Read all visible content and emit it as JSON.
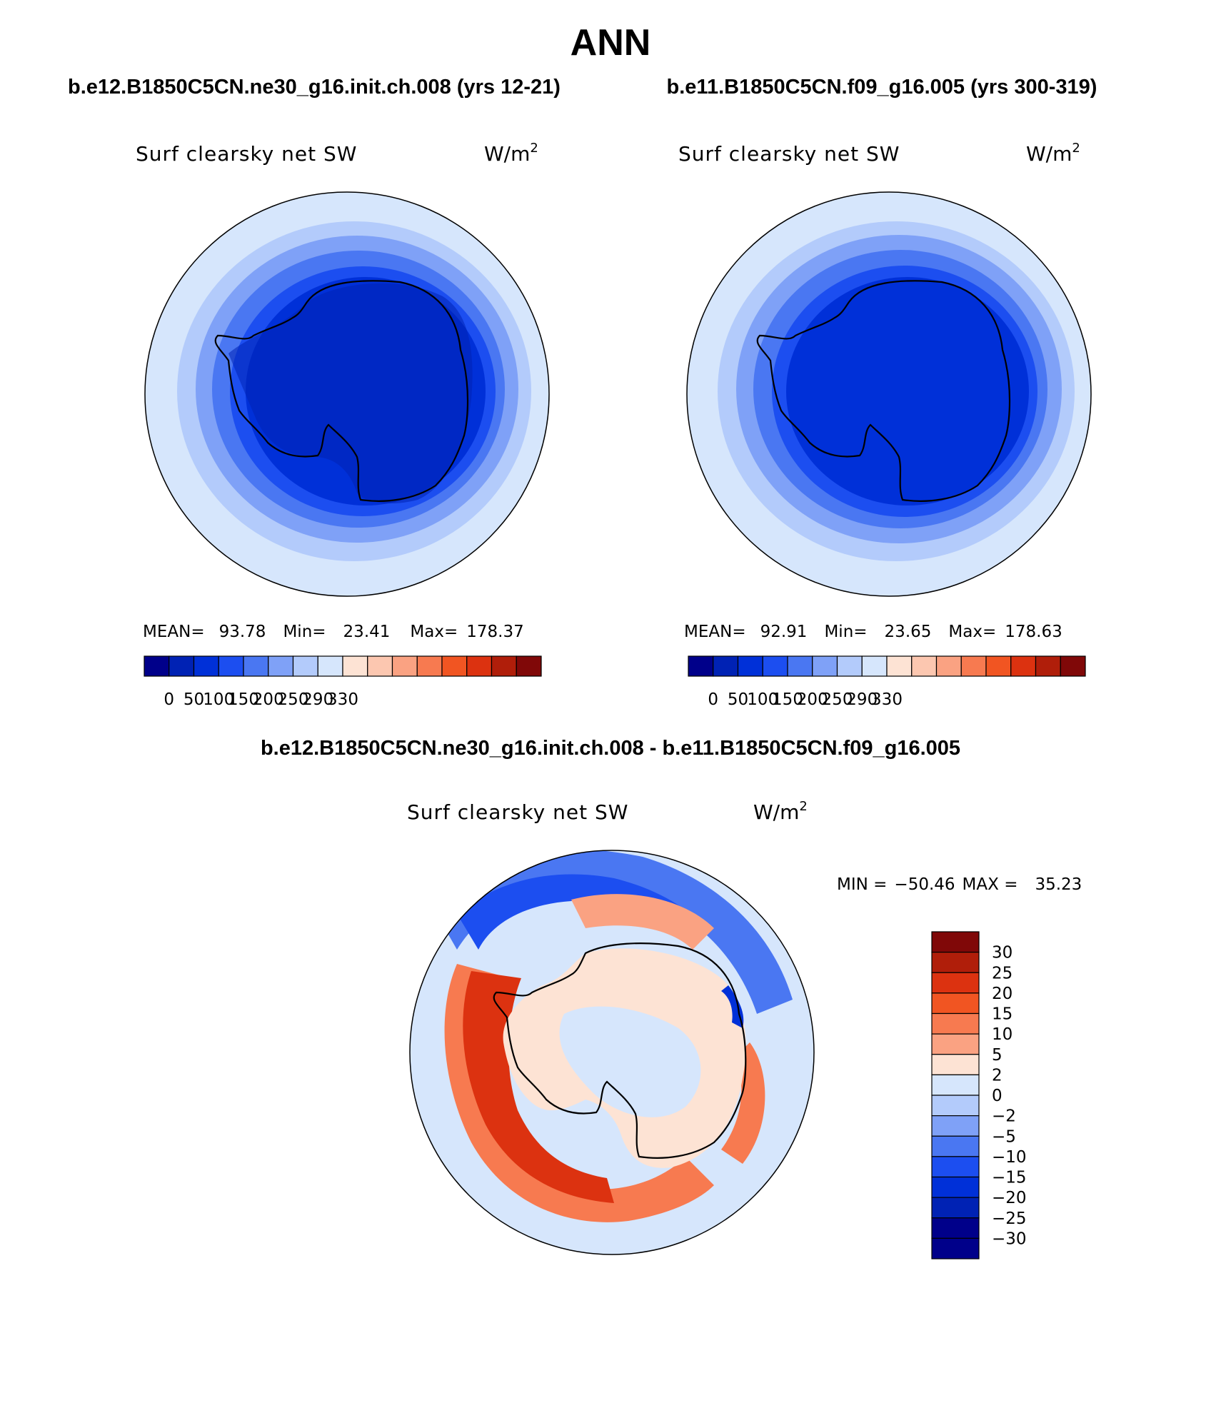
{
  "page_title": "ANN",
  "panels": [
    {
      "case_title": "b.e12.B1850C5CN.ne30_g16.init.ch.008 (yrs 12-21)",
      "variable": "Surf clearsky net SW",
      "units_base": "W/m",
      "units_exp": "2",
      "stats": {
        "mean_label": "MEAN=",
        "mean": "93.78",
        "min_label": "Min=",
        "min": "23.41",
        "max_label": "Max=",
        "max": "178.37"
      }
    },
    {
      "case_title": "b.e11.B1850C5CN.f09_g16.005 (yrs 300-319)",
      "variable": "Surf clearsky net SW",
      "units_base": "W/m",
      "units_exp": "2",
      "stats": {
        "mean_label": "MEAN=",
        "mean": "92.91",
        "min_label": "Min=",
        "min": "23.65",
        "max_label": "Max=",
        "max": "178.63"
      }
    }
  ],
  "colorbar_main": {
    "colors": [
      "#00008a",
      "#0022b4",
      "#0030d8",
      "#1c4ef0",
      "#4a77f2",
      "#7fa1f7",
      "#b3cbfb",
      "#d6e6fc",
      "#fde3d4",
      "#fcc7b0",
      "#faa282",
      "#f77a50",
      "#f15522",
      "#dc3210",
      "#b01e0a",
      "#800808"
    ],
    "tick_labels": [
      "0",
      "50",
      "100",
      "150",
      "200",
      "250",
      "290",
      "330"
    ]
  },
  "diff": {
    "title": "b.e12.B1850C5CN.ne30_g16.init.ch.008 - b.e11.B1850C5CN.f09_g16.005",
    "variable": "Surf clearsky net SW",
    "units_base": "W/m",
    "units_exp": "2",
    "min_label": "MIN =",
    "min": "−50.46",
    "max_label": "MAX =",
    "max": "35.23",
    "colorbar": {
      "colors": [
        "#800808",
        "#b01e0a",
        "#dc3210",
        "#f15522",
        "#f77a50",
        "#faa282",
        "#fde3d4",
        "#d6e6fc",
        "#b3cbfb",
        "#7fa1f7",
        "#4a77f2",
        "#1c4ef0",
        "#0030d8",
        "#0022b4",
        "#00008a"
      ],
      "labels": [
        "30",
        "25",
        "20",
        "15",
        "10",
        "5",
        "2",
        "0",
        "−2",
        "−5",
        "−10",
        "−15",
        "−20",
        "−25",
        "−30"
      ]
    }
  }
}
